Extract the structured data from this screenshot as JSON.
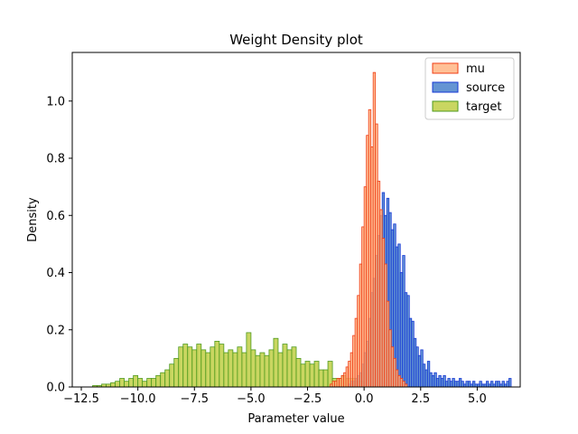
{
  "chart_data": {
    "type": "histogram",
    "title": "Weight Density plot",
    "xlabel": "Parameter value",
    "ylabel": "Density",
    "xlim": [
      -12.9,
      6.9
    ],
    "ylim": [
      0,
      1.17
    ],
    "xticks": [
      {
        "value": -12.5,
        "label": "−12.5"
      },
      {
        "value": -10.0,
        "label": "−10.0"
      },
      {
        "value": -7.5,
        "label": "−7.5"
      },
      {
        "value": -5.0,
        "label": "−5.0"
      },
      {
        "value": -2.5,
        "label": "−2.5"
      },
      {
        "value": 0.0,
        "label": "0.0"
      },
      {
        "value": 2.5,
        "label": "2.5"
      },
      {
        "value": 5.0,
        "label": "5.0"
      }
    ],
    "yticks": [
      {
        "value": 0.0,
        "label": "0.0"
      },
      {
        "value": 0.2,
        "label": "0.2"
      },
      {
        "value": 0.4,
        "label": "0.4"
      },
      {
        "value": 0.6,
        "label": "0.6"
      },
      {
        "value": 0.8,
        "label": "0.8"
      },
      {
        "value": 1.0,
        "label": "1.0"
      }
    ],
    "grid": false,
    "legend_position": "top-right",
    "series": [
      {
        "name": "mu",
        "fill": "#ffb07c",
        "edge": "#f03c14",
        "opacity": 0.8,
        "bins": [
          [
            -1.5,
            -1.4,
            0.01
          ],
          [
            -1.4,
            -1.3,
            0.02
          ],
          [
            -1.3,
            -1.2,
            0.02
          ],
          [
            -1.2,
            -1.1,
            0.03
          ],
          [
            -1.1,
            -1.0,
            0.03
          ],
          [
            -1.0,
            -0.9,
            0.04
          ],
          [
            -0.9,
            -0.8,
            0.05
          ],
          [
            -0.8,
            -0.7,
            0.07
          ],
          [
            -0.7,
            -0.6,
            0.09
          ],
          [
            -0.6,
            -0.5,
            0.12
          ],
          [
            -0.5,
            -0.4,
            0.18
          ],
          [
            -0.4,
            -0.3,
            0.24
          ],
          [
            -0.3,
            -0.2,
            0.32
          ],
          [
            -0.2,
            -0.1,
            0.43
          ],
          [
            -0.1,
            0.0,
            0.56
          ],
          [
            0.0,
            0.1,
            0.7
          ],
          [
            0.1,
            0.2,
            0.88
          ],
          [
            0.2,
            0.3,
            0.97
          ],
          [
            0.3,
            0.4,
            0.84
          ],
          [
            0.4,
            0.5,
            1.1
          ],
          [
            0.5,
            0.6,
            0.92
          ],
          [
            0.6,
            0.7,
            0.72
          ],
          [
            0.7,
            0.8,
            0.62
          ],
          [
            0.8,
            0.9,
            0.52
          ],
          [
            0.9,
            1.0,
            0.43
          ],
          [
            1.0,
            1.1,
            0.3
          ],
          [
            1.1,
            1.2,
            0.2
          ],
          [
            1.2,
            1.3,
            0.14
          ],
          [
            1.3,
            1.4,
            0.1
          ],
          [
            1.4,
            1.5,
            0.06
          ],
          [
            1.5,
            1.6,
            0.04
          ],
          [
            1.6,
            1.7,
            0.03
          ],
          [
            1.7,
            1.8,
            0.02
          ],
          [
            1.8,
            1.9,
            0.01
          ]
        ]
      },
      {
        "name": "source",
        "fill": "#3d79c8",
        "edge": "#1537d6",
        "opacity": 0.8,
        "bins": [
          [
            -0.7,
            -0.6,
            0.01
          ],
          [
            -0.6,
            -0.5,
            0.02
          ],
          [
            -0.5,
            -0.4,
            0.02
          ],
          [
            -0.4,
            -0.3,
            0.03
          ],
          [
            -0.3,
            -0.2,
            0.04
          ],
          [
            -0.2,
            -0.1,
            0.05
          ],
          [
            -0.1,
            0.0,
            0.08
          ],
          [
            0.0,
            0.1,
            0.12
          ],
          [
            0.1,
            0.2,
            0.16
          ],
          [
            0.2,
            0.3,
            0.24
          ],
          [
            0.3,
            0.4,
            0.33
          ],
          [
            0.4,
            0.5,
            0.38
          ],
          [
            0.5,
            0.6,
            0.46
          ],
          [
            0.6,
            0.7,
            0.53
          ],
          [
            0.7,
            0.8,
            0.6
          ],
          [
            0.8,
            0.9,
            0.68
          ],
          [
            0.9,
            1.0,
            0.6
          ],
          [
            1.0,
            1.1,
            0.66
          ],
          [
            1.1,
            1.2,
            0.61
          ],
          [
            1.2,
            1.3,
            0.55
          ],
          [
            1.3,
            1.4,
            0.57
          ],
          [
            1.4,
            1.5,
            0.49
          ],
          [
            1.5,
            1.6,
            0.5
          ],
          [
            1.6,
            1.7,
            0.4
          ],
          [
            1.7,
            1.8,
            0.46
          ],
          [
            1.8,
            1.9,
            0.33
          ],
          [
            1.9,
            2.0,
            0.32
          ],
          [
            2.0,
            2.1,
            0.24
          ],
          [
            2.1,
            2.2,
            0.23
          ],
          [
            2.2,
            2.3,
            0.17
          ],
          [
            2.3,
            2.4,
            0.14
          ],
          [
            2.4,
            2.5,
            0.11
          ],
          [
            2.5,
            2.6,
            0.13
          ],
          [
            2.6,
            2.7,
            0.08
          ],
          [
            2.7,
            2.8,
            0.06
          ],
          [
            2.8,
            2.9,
            0.09
          ],
          [
            2.9,
            3.0,
            0.05
          ],
          [
            3.0,
            3.1,
            0.04
          ],
          [
            3.1,
            3.2,
            0.05
          ],
          [
            3.2,
            3.3,
            0.03
          ],
          [
            3.3,
            3.4,
            0.04
          ],
          [
            3.4,
            3.5,
            0.03
          ],
          [
            3.5,
            3.6,
            0.04
          ],
          [
            3.6,
            3.7,
            0.02
          ],
          [
            3.7,
            3.8,
            0.03
          ],
          [
            3.8,
            3.9,
            0.02
          ],
          [
            3.9,
            4.0,
            0.03
          ],
          [
            4.0,
            4.1,
            0.02
          ],
          [
            4.1,
            4.2,
            0.02
          ],
          [
            4.2,
            4.3,
            0.03
          ],
          [
            4.3,
            4.4,
            0.02
          ],
          [
            4.4,
            4.5,
            0.01
          ],
          [
            4.5,
            4.6,
            0.02
          ],
          [
            4.6,
            4.7,
            0.02
          ],
          [
            4.7,
            4.8,
            0.01
          ],
          [
            4.8,
            4.9,
            0.02
          ],
          [
            4.9,
            5.0,
            0.01
          ],
          [
            5.0,
            5.1,
            0.01
          ],
          [
            5.1,
            5.2,
            0.02
          ],
          [
            5.2,
            5.3,
            0.01
          ],
          [
            5.3,
            5.4,
            0.01
          ],
          [
            5.4,
            5.5,
            0.02
          ],
          [
            5.5,
            5.6,
            0.01
          ],
          [
            5.6,
            5.7,
            0.02
          ],
          [
            5.7,
            5.8,
            0.01
          ],
          [
            5.8,
            5.9,
            0.02
          ],
          [
            5.9,
            6.0,
            0.02
          ],
          [
            6.0,
            6.1,
            0.01
          ],
          [
            6.1,
            6.2,
            0.02
          ],
          [
            6.2,
            6.3,
            0.01
          ],
          [
            6.3,
            6.4,
            0.02
          ],
          [
            6.4,
            6.5,
            0.03
          ]
        ]
      },
      {
        "name": "target",
        "fill": "#bccc3a",
        "edge": "#4e9a1e",
        "opacity": 0.8,
        "bins": [
          [
            -12.0,
            -11.8,
            0.005
          ],
          [
            -11.8,
            -11.6,
            0.005
          ],
          [
            -11.6,
            -11.4,
            0.01
          ],
          [
            -11.4,
            -11.2,
            0.01
          ],
          [
            -11.2,
            -11.0,
            0.015
          ],
          [
            -11.0,
            -10.8,
            0.02
          ],
          [
            -10.8,
            -10.6,
            0.03
          ],
          [
            -10.6,
            -10.4,
            0.02
          ],
          [
            -10.4,
            -10.2,
            0.03
          ],
          [
            -10.2,
            -10.0,
            0.04
          ],
          [
            -10.0,
            -9.8,
            0.03
          ],
          [
            -9.8,
            -9.6,
            0.02
          ],
          [
            -9.6,
            -9.4,
            0.03
          ],
          [
            -9.4,
            -9.2,
            0.03
          ],
          [
            -9.2,
            -9.0,
            0.04
          ],
          [
            -9.0,
            -8.8,
            0.05
          ],
          [
            -8.8,
            -8.6,
            0.06
          ],
          [
            -8.6,
            -8.4,
            0.08
          ],
          [
            -8.4,
            -8.2,
            0.1
          ],
          [
            -8.2,
            -8.0,
            0.14
          ],
          [
            -8.0,
            -7.8,
            0.15
          ],
          [
            -7.8,
            -7.6,
            0.14
          ],
          [
            -7.6,
            -7.4,
            0.13
          ],
          [
            -7.4,
            -7.2,
            0.15
          ],
          [
            -7.2,
            -7.0,
            0.13
          ],
          [
            -7.0,
            -6.8,
            0.12
          ],
          [
            -6.8,
            -6.6,
            0.14
          ],
          [
            -6.6,
            -6.4,
            0.16
          ],
          [
            -6.4,
            -6.2,
            0.15
          ],
          [
            -6.2,
            -6.0,
            0.12
          ],
          [
            -6.0,
            -5.8,
            0.13
          ],
          [
            -5.8,
            -5.6,
            0.12
          ],
          [
            -5.6,
            -5.4,
            0.14
          ],
          [
            -5.4,
            -5.2,
            0.12
          ],
          [
            -5.2,
            -5.0,
            0.19
          ],
          [
            -5.0,
            -4.8,
            0.13
          ],
          [
            -4.8,
            -4.6,
            0.11
          ],
          [
            -4.6,
            -4.4,
            0.12
          ],
          [
            -4.4,
            -4.2,
            0.11
          ],
          [
            -4.2,
            -4.0,
            0.13
          ],
          [
            -4.0,
            -3.8,
            0.17
          ],
          [
            -3.8,
            -3.6,
            0.12
          ],
          [
            -3.6,
            -3.4,
            0.15
          ],
          [
            -3.4,
            -3.2,
            0.13
          ],
          [
            -3.2,
            -3.0,
            0.14
          ],
          [
            -3.0,
            -2.8,
            0.1
          ],
          [
            -2.8,
            -2.6,
            0.08
          ],
          [
            -2.6,
            -2.4,
            0.09
          ],
          [
            -2.4,
            -2.2,
            0.08
          ],
          [
            -2.2,
            -2.0,
            0.09
          ],
          [
            -2.0,
            -1.8,
            0.06
          ],
          [
            -1.8,
            -1.6,
            0.06
          ],
          [
            -1.6,
            -1.4,
            0.09
          ],
          [
            -1.4,
            -1.2,
            0.03
          ],
          [
            -1.2,
            -1.0,
            0.03
          ],
          [
            -1.0,
            -0.8,
            0.04
          ],
          [
            -0.8,
            -0.6,
            0.03
          ],
          [
            -0.6,
            -0.4,
            0.03
          ],
          [
            -0.4,
            -0.2,
            0.02
          ],
          [
            -0.2,
            0.0,
            0.02
          ]
        ]
      }
    ]
  }
}
